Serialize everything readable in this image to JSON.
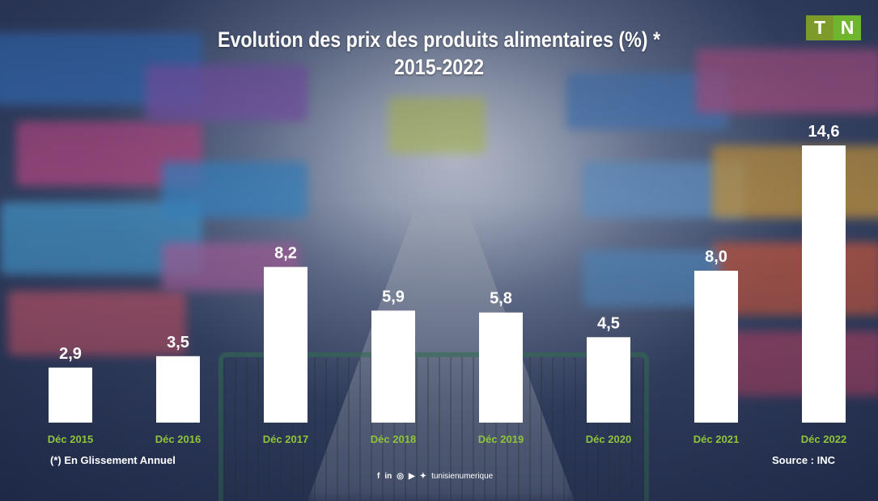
{
  "title_line1": "Evolution des prix des produits alimentaires (%) *",
  "title_line2": "2015-2022",
  "logo": {
    "left": "T",
    "right": "N"
  },
  "footnote": "(*)  En Glissement Annuel",
  "source": "Source : INC",
  "social": {
    "icons": [
      "facebook-icon",
      "linkedin-icon",
      "instagram-icon",
      "youtube-icon",
      "twitter-icon"
    ],
    "handle": "tunisienumerique"
  },
  "colors": {
    "bar": "#ffffff",
    "category_label": "#8fc43a",
    "logo_t": "#7c9b2a",
    "logo_n": "#6fb52d"
  },
  "chart_data": {
    "type": "bar",
    "categories": [
      "Déc 2015",
      "Déc 2016",
      "Déc 2017",
      "Déc 2018",
      "Déc 2019",
      "Déc 2020",
      "Déc 2021",
      "Déc 2022"
    ],
    "values": [
      2.9,
      3.5,
      8.2,
      5.9,
      5.8,
      4.5,
      8.0,
      14.6
    ],
    "value_labels": [
      "2,9",
      "3,5",
      "8,2",
      "5,9",
      "5,8",
      "4,5",
      "8,0",
      "14,6"
    ],
    "title": "Evolution des prix des produits alimentaires (%) * 2015-2022",
    "xlabel": "",
    "ylabel": "",
    "ylim": [
      0,
      14.6
    ],
    "grid": false,
    "legend": "none"
  }
}
